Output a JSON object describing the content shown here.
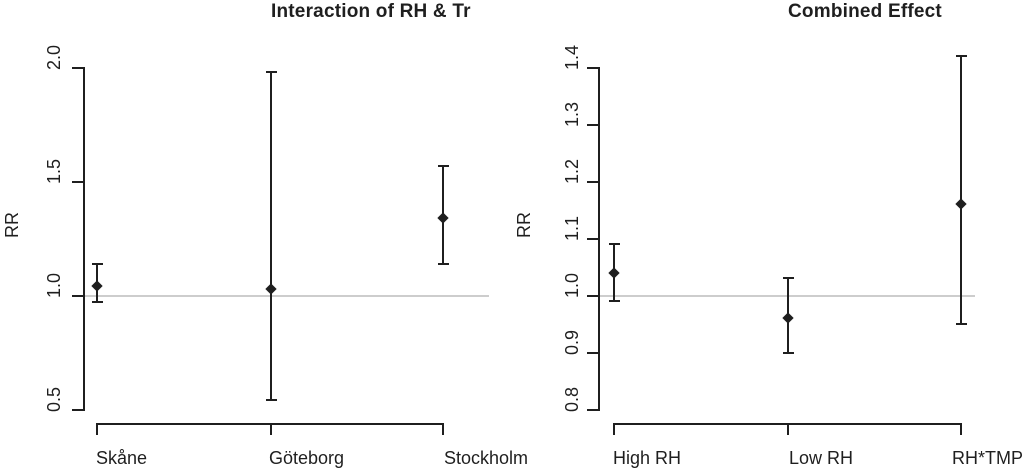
{
  "figure": {
    "background": "#ffffff",
    "ink_color": "#1f1f1f",
    "reference_line_color": "#cdcdcd"
  },
  "chart_data": [
    {
      "type": "scatter",
      "subtype": "forest-plot-error-bars",
      "title": "Interaction of RH & Tr",
      "xlabel": "",
      "ylabel": "RR",
      "ylim": [
        0.5,
        2.0
      ],
      "yticks": [
        2.0,
        1.5,
        1.0,
        0.5
      ],
      "ytick_labels": [
        "2.0",
        "1.5",
        "1.0",
        "0.5"
      ],
      "reference_line_y": 1.0,
      "grid": false,
      "legend": "none",
      "marker": "filled-diamond",
      "categories": [
        "Skåne",
        "Göteborg",
        "Stockholm"
      ],
      "series": [
        {
          "name": "RR point estimate",
          "values": [
            1.04,
            1.03,
            1.34
          ]
        },
        {
          "name": "CI lower bound",
          "values": [
            0.97,
            0.54,
            1.14
          ]
        },
        {
          "name": "CI upper bound",
          "values": [
            1.14,
            1.98,
            1.57
          ]
        }
      ]
    },
    {
      "type": "scatter",
      "subtype": "forest-plot-error-bars",
      "title": "Combined Effect",
      "xlabel": "",
      "ylabel": "RR",
      "ylim": [
        0.8,
        1.4
      ],
      "yticks": [
        1.4,
        1.3,
        1.2,
        1.1,
        1.0,
        0.9,
        0.8
      ],
      "ytick_labels": [
        "1.4",
        "1.3",
        "1.2",
        "1.1",
        "1.0",
        "0.9",
        "0.8"
      ],
      "reference_line_y": 1.0,
      "grid": false,
      "legend": "none",
      "marker": "filled-diamond",
      "categories": [
        "High RH",
        "Low RH",
        "RH*TMP"
      ],
      "series": [
        {
          "name": "RR point estimate",
          "values": [
            1.04,
            0.96,
            1.16
          ]
        },
        {
          "name": "CI lower bound",
          "values": [
            0.99,
            0.9,
            0.95
          ]
        },
        {
          "name": "CI upper bound",
          "values": [
            1.09,
            1.03,
            1.42
          ]
        }
      ]
    }
  ]
}
